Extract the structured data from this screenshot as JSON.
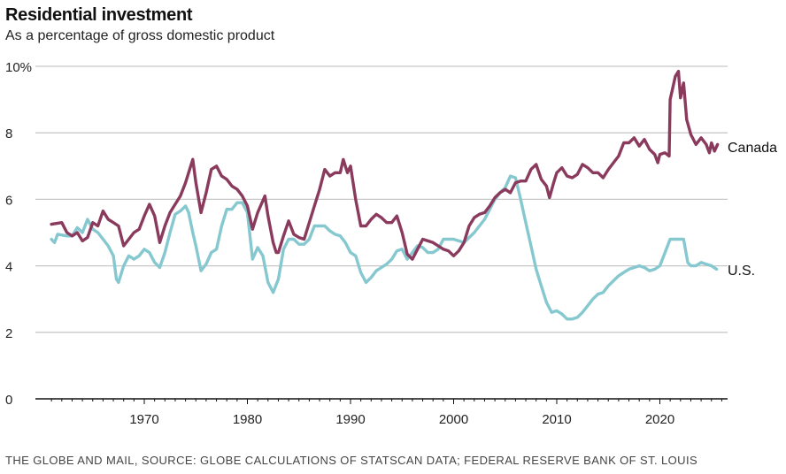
{
  "colors": {
    "canada": "#8a3a5c",
    "us": "#86c8d0",
    "grid": "#c8c8c8",
    "axis": "#111111"
  },
  "chart_data": {
    "type": "line",
    "title": "Residential investment",
    "subtitle": "As a percentage of gross domestic product",
    "xlabel": "",
    "ylabel": "",
    "xlim": [
      1961,
      2026
    ],
    "ylim": [
      0,
      10
    ],
    "yticks": [
      0,
      2,
      4,
      6,
      8,
      10
    ],
    "ytick_labels": [
      "0",
      "2",
      "4",
      "6",
      "8",
      "10%"
    ],
    "xticks": [
      1970,
      1980,
      1990,
      2000,
      2010,
      2020
    ],
    "xtick_labels": [
      "1970",
      "1980",
      "1990",
      "2000",
      "2010",
      "2020"
    ],
    "grid": true,
    "legend": "direct labels at right end of lines",
    "series": [
      {
        "name": "Canada",
        "label": "Canada",
        "x": [
          1961,
          1962,
          1962.5,
          1963,
          1963.5,
          1964,
          1964.5,
          1965,
          1965.5,
          1966,
          1966.5,
          1967,
          1967.5,
          1968,
          1968.5,
          1969,
          1969.5,
          1970,
          1970.5,
          1971,
          1971.5,
          1972,
          1972.5,
          1973,
          1973.5,
          1974,
          1974.7,
          1975,
          1975.5,
          1976,
          1976.5,
          1977,
          1977.5,
          1978,
          1978.5,
          1979,
          1979.5,
          1980,
          1980.5,
          1981,
          1981.7,
          1982,
          1982.5,
          1982.8,
          1983,
          1983.5,
          1984,
          1984.5,
          1985,
          1985.5,
          1986,
          1986.5,
          1987,
          1987.5,
          1988,
          1988.5,
          1989,
          1989.3,
          1989.7,
          1990,
          1990.5,
          1991,
          1991.5,
          1992,
          1992.5,
          1993,
          1993.5,
          1994,
          1994.5,
          1995,
          1995.5,
          1996,
          1996.5,
          1997,
          1997.5,
          1998,
          1998.5,
          1999,
          1999.5,
          2000,
          2000.5,
          2001,
          2001.5,
          2002,
          2002.5,
          2003,
          2003.5,
          2004,
          2004.5,
          2005,
          2005.5,
          2006,
          2006.5,
          2007,
          2007.5,
          2008,
          2008.5,
          2009,
          2009.3,
          2009.7,
          2010,
          2010.5,
          2011,
          2011.5,
          2012,
          2012.5,
          2013,
          2013.5,
          2014,
          2014.5,
          2015,
          2015.5,
          2016,
          2016.5,
          2017,
          2017.5,
          2018,
          2018.5,
          2019,
          2019.5,
          2019.8,
          2020,
          2020.5,
          2020.9,
          2021,
          2021.5,
          2021.8,
          2022,
          2022.3,
          2022.6,
          2023,
          2023.5,
          2024,
          2024.5,
          2024.8,
          2025,
          2025.3,
          2025.6
        ],
        "values": [
          5.25,
          5.3,
          5.0,
          4.9,
          5.0,
          4.75,
          4.85,
          5.3,
          5.2,
          5.65,
          5.4,
          5.3,
          5.2,
          4.6,
          4.8,
          5.0,
          5.1,
          5.5,
          5.85,
          5.5,
          4.7,
          5.2,
          5.6,
          5.85,
          6.1,
          6.5,
          7.2,
          6.5,
          5.6,
          6.2,
          6.9,
          7.0,
          6.7,
          6.6,
          6.4,
          6.3,
          6.1,
          5.8,
          5.1,
          5.6,
          6.1,
          5.5,
          4.7,
          4.4,
          4.4,
          4.9,
          5.35,
          4.95,
          4.85,
          4.8,
          5.3,
          5.8,
          6.3,
          6.9,
          6.7,
          6.8,
          6.8,
          7.2,
          6.8,
          7.0,
          6.0,
          5.2,
          5.2,
          5.4,
          5.55,
          5.45,
          5.3,
          5.3,
          5.5,
          5.0,
          4.35,
          4.2,
          4.5,
          4.8,
          4.75,
          4.7,
          4.6,
          4.5,
          4.45,
          4.3,
          4.45,
          4.7,
          5.2,
          5.45,
          5.55,
          5.6,
          5.8,
          6.05,
          6.2,
          6.3,
          6.2,
          6.5,
          6.55,
          6.55,
          6.9,
          7.05,
          6.6,
          6.4,
          6.05,
          6.5,
          6.8,
          6.95,
          6.7,
          6.65,
          6.75,
          7.05,
          6.95,
          6.8,
          6.8,
          6.65,
          6.9,
          7.1,
          7.3,
          7.7,
          7.7,
          7.85,
          7.6,
          7.8,
          7.5,
          7.35,
          7.1,
          7.35,
          7.4,
          7.3,
          9.0,
          9.7,
          9.85,
          9.05,
          9.5,
          8.4,
          7.95,
          7.65,
          7.85,
          7.65,
          7.4,
          7.7,
          7.45,
          7.65
        ]
      },
      {
        "name": "U.S.",
        "label": "U.S.",
        "x": [
          1961,
          1961.3,
          1961.6,
          1962.5,
          1963,
          1963.5,
          1964,
          1964.5,
          1965,
          1965.5,
          1966,
          1966.5,
          1967,
          1967.3,
          1967.5,
          1968,
          1968.5,
          1969,
          1969.5,
          1970,
          1970.5,
          1971,
          1971.5,
          1972,
          1972.5,
          1973,
          1973.5,
          1974,
          1974.3,
          1974.7,
          1975,
          1975.5,
          1976,
          1976.5,
          1977,
          1977.5,
          1978,
          1978.5,
          1979,
          1979.5,
          1980,
          1980.5,
          1981,
          1981.5,
          1982,
          1982.5,
          1983,
          1983.5,
          1984,
          1984.5,
          1985,
          1985.5,
          1986,
          1986.5,
          1987,
          1987.5,
          1988,
          1988.5,
          1989,
          1989.5,
          1990,
          1990.5,
          1991,
          1991.5,
          1992,
          1992.5,
          1993,
          1993.5,
          1994,
          1994.5,
          1995,
          1995.5,
          1996,
          1996.5,
          1997,
          1997.5,
          1998,
          1998.5,
          1999,
          2000,
          2000.5,
          2001,
          2001.5,
          2002,
          2002.5,
          2003,
          2003.5,
          2004,
          2004.5,
          2005,
          2005.5,
          2006,
          2006.5,
          2007,
          2007.5,
          2008,
          2008.5,
          2009,
          2009.5,
          2010,
          2010.5,
          2011,
          2011.5,
          2012,
          2012.5,
          2013,
          2013.5,
          2014,
          2014.5,
          2015,
          2015.5,
          2016,
          2016.5,
          2017,
          2017.5,
          2018,
          2018.5,
          2019,
          2019.5,
          2020,
          2020.5,
          2021,
          2021.5,
          2022,
          2022.3,
          2022.7,
          2023,
          2023.5,
          2024,
          2024.5,
          2025,
          2025.5
        ],
        "values": [
          4.8,
          4.7,
          4.95,
          4.9,
          4.9,
          5.15,
          5.0,
          5.4,
          5.1,
          5.0,
          4.8,
          4.6,
          4.3,
          3.6,
          3.5,
          4.0,
          4.3,
          4.2,
          4.3,
          4.5,
          4.4,
          4.1,
          3.95,
          4.4,
          5.0,
          5.55,
          5.65,
          5.8,
          5.6,
          5.0,
          4.6,
          3.85,
          4.05,
          4.4,
          4.5,
          5.2,
          5.7,
          5.7,
          5.9,
          5.9,
          5.6,
          4.2,
          4.55,
          4.3,
          3.5,
          3.2,
          3.6,
          4.5,
          4.8,
          4.8,
          4.65,
          4.65,
          4.8,
          5.2,
          5.2,
          5.2,
          5.05,
          4.95,
          4.9,
          4.7,
          4.4,
          4.3,
          3.8,
          3.5,
          3.65,
          3.85,
          3.95,
          4.05,
          4.2,
          4.45,
          4.5,
          4.2,
          4.4,
          4.6,
          4.55,
          4.4,
          4.4,
          4.5,
          4.8,
          4.8,
          4.75,
          4.7,
          4.85,
          5.0,
          5.2,
          5.4,
          5.7,
          6.0,
          6.2,
          6.35,
          6.7,
          6.65,
          6.0,
          5.3,
          4.6,
          3.9,
          3.4,
          2.9,
          2.6,
          2.65,
          2.55,
          2.4,
          2.4,
          2.45,
          2.6,
          2.8,
          3.0,
          3.15,
          3.2,
          3.4,
          3.55,
          3.7,
          3.8,
          3.9,
          3.95,
          4.0,
          3.95,
          3.85,
          3.9,
          4.0,
          4.4,
          4.8,
          4.8,
          4.8,
          4.8,
          4.1,
          4.0,
          4.0,
          4.1,
          4.05,
          4.0,
          3.9
        ]
      }
    ],
    "source": "THE GLOBE AND MAIL, SOURCE: GLOBE CALCULATIONS OF STATSCAN DATA; FEDERAL RESERVE BANK OF ST. LOUIS"
  }
}
